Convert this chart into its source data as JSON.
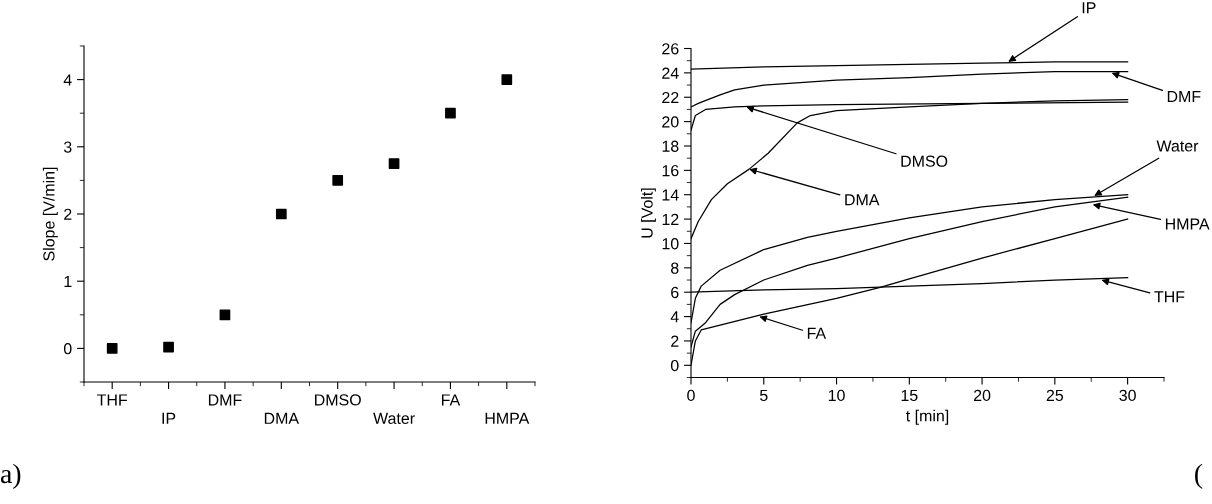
{
  "chart_data": [
    {
      "type": "scatter",
      "ylabel": "Slope [V/min]",
      "categories": [
        "THF",
        "IP",
        "DMF",
        "DMA",
        "DMSO",
        "Water",
        "FA",
        "HMPA"
      ],
      "values": [
        0,
        0.02,
        0.5,
        2,
        2.5,
        2.75,
        3.5,
        4
      ],
      "color": "#000000",
      "marker": "square",
      "ylim": [
        -0.5,
        4.5
      ],
      "yticks": [
        0,
        1,
        2,
        3,
        4
      ],
      "grid": false,
      "legend": false,
      "annotations": [
        "a)"
      ]
    },
    {
      "type": "line",
      "xlabel": "t [min]",
      "ylabel": "U [Volt]",
      "xlim": [
        0,
        32.5
      ],
      "xticks": [
        0,
        5,
        10,
        15,
        20,
        25,
        30
      ],
      "ylim": [
        -1,
        26
      ],
      "yticks": [
        0,
        2,
        4,
        6,
        8,
        10,
        12,
        14,
        16,
        18,
        20,
        22,
        24,
        26
      ],
      "grid": false,
      "legend": false,
      "marker": "none",
      "line_style": "solid",
      "series": [
        {
          "color": "#000000",
          "x": [
            0,
            5,
            10,
            15,
            20,
            25,
            30
          ],
          "values": [
            24.3,
            24.5,
            24.6,
            24.7,
            24.8,
            24.9,
            24.9
          ]
        },
        {
          "color": "#000000",
          "x": [
            0,
            0.5,
            2,
            3,
            5,
            10,
            15,
            20,
            25,
            30
          ],
          "values": [
            21.2,
            21.5,
            22.2,
            22.6,
            23.0,
            23.4,
            23.6,
            23.9,
            24.1,
            24.1
          ]
        },
        {
          "color": "#000000",
          "x": [
            0,
            0.3,
            1,
            3,
            5,
            10,
            20,
            30
          ],
          "values": [
            19.3,
            20.5,
            21.0,
            21.2,
            21.3,
            21.4,
            21.5,
            21.6
          ]
        },
        {
          "color": "#000000",
          "x": [
            0,
            0.5,
            1.4,
            2.5,
            4,
            5.3,
            7.3,
            8.2,
            10,
            15,
            20,
            25,
            30
          ],
          "values": [
            10.4,
            11.8,
            13.6,
            14.9,
            16.1,
            17.4,
            19.9,
            20.5,
            20.9,
            21.2,
            21.5,
            21.7,
            21.8
          ]
        },
        {
          "color": "#000000",
          "x": [
            0,
            0.3,
            0.7,
            2,
            5,
            8,
            10,
            15,
            20,
            25,
            30
          ],
          "values": [
            3.5,
            5.5,
            6.5,
            7.8,
            9.5,
            10.5,
            11.0,
            12.1,
            13.0,
            13.6,
            14.0
          ]
        },
        {
          "color": "#000000",
          "x": [
            0,
            0.3,
            1,
            2,
            3,
            5,
            8,
            10,
            15,
            20,
            25,
            30
          ],
          "values": [
            1.5,
            2.8,
            3.5,
            5.0,
            5.8,
            7.0,
            8.2,
            8.8,
            10.4,
            11.8,
            13.0,
            13.8
          ]
        },
        {
          "color": "#000000",
          "x": [
            0,
            0.3,
            0.7,
            2,
            5,
            10,
            13,
            15,
            20,
            25,
            30
          ],
          "values": [
            0,
            2.0,
            2.9,
            3.3,
            4.2,
            5.5,
            6.4,
            7.1,
            8.8,
            10.4,
            12.0
          ]
        },
        {
          "color": "#000000",
          "x": [
            0,
            5,
            10,
            15,
            20,
            25,
            30
          ],
          "values": [
            6.0,
            6.2,
            6.3,
            6.5,
            6.7,
            7.0,
            7.2
          ]
        }
      ],
      "annotations": [
        {
          "text": "IP",
          "x": 21.8,
          "y": 24.9
        },
        {
          "text": "DMF",
          "x": 28.9,
          "y": 24.0
        },
        {
          "text": "DMSO",
          "x": 3.8,
          "y": 21.2
        },
        {
          "text": "DMA",
          "x": 4.0,
          "y": 16.1
        },
        {
          "text": "Water",
          "x": 27.7,
          "y": 13.9
        },
        {
          "text": "HMPA",
          "x": 27.6,
          "y": 13.2
        },
        {
          "text": "THF",
          "x": 28.2,
          "y": 7.0
        },
        {
          "text": "FA",
          "x": 4.7,
          "y": 4.0
        },
        "("
      ]
    }
  ]
}
